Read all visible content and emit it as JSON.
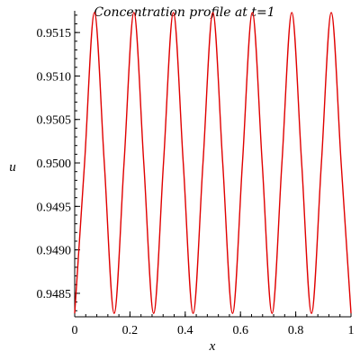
{
  "chart_data": {
    "type": "line",
    "title": "Concentration profile at t=1",
    "xlabel": "x",
    "ylabel": "u",
    "xlim": [
      0,
      1
    ],
    "ylim": [
      0.94823,
      0.95175
    ],
    "x_ticks": [
      {
        "value": 0,
        "label": "0"
      },
      {
        "value": 0.2,
        "label": "0.2"
      },
      {
        "value": 0.4,
        "label": "0.4"
      },
      {
        "value": 0.6,
        "label": "0.6"
      },
      {
        "value": 0.8,
        "label": "0.8"
      },
      {
        "value": 1,
        "label": "1"
      }
    ],
    "y_ticks": [
      {
        "value": 0.9485,
        "label": "0.9485"
      },
      {
        "value": 0.949,
        "label": "0.9490"
      },
      {
        "value": 0.9495,
        "label": "0.9495"
      },
      {
        "value": 0.95,
        "label": "0.9500"
      },
      {
        "value": 0.9505,
        "label": "0.9505"
      },
      {
        "value": 0.951,
        "label": "0.9510"
      },
      {
        "value": 0.9515,
        "label": "0.9515"
      }
    ],
    "grid": false,
    "series": [
      {
        "color": "#e00000",
        "x": [
          0,
          0.0357,
          0.0714,
          0.1071,
          0.1429,
          0.1786,
          0.2143,
          0.25,
          0.2857,
          0.3214,
          0.3571,
          0.3929,
          0.4286,
          0.4643,
          0.5,
          0.5357,
          0.5714,
          0.6071,
          0.6429,
          0.6786,
          0.7143,
          0.75,
          0.7857,
          0.8214,
          0.8571,
          0.8929,
          0.9286,
          0.9643,
          1.0
        ],
        "y": [
          0.94827,
          0.95,
          0.95173,
          0.95,
          0.94827,
          0.95,
          0.95173,
          0.95,
          0.94827,
          0.95,
          0.95173,
          0.95,
          0.94827,
          0.95,
          0.95173,
          0.95,
          0.94827,
          0.95,
          0.95173,
          0.95,
          0.94827,
          0.95,
          0.95173,
          0.95,
          0.94827,
          0.95,
          0.95173,
          0.95,
          0.94827
        ]
      }
    ]
  }
}
